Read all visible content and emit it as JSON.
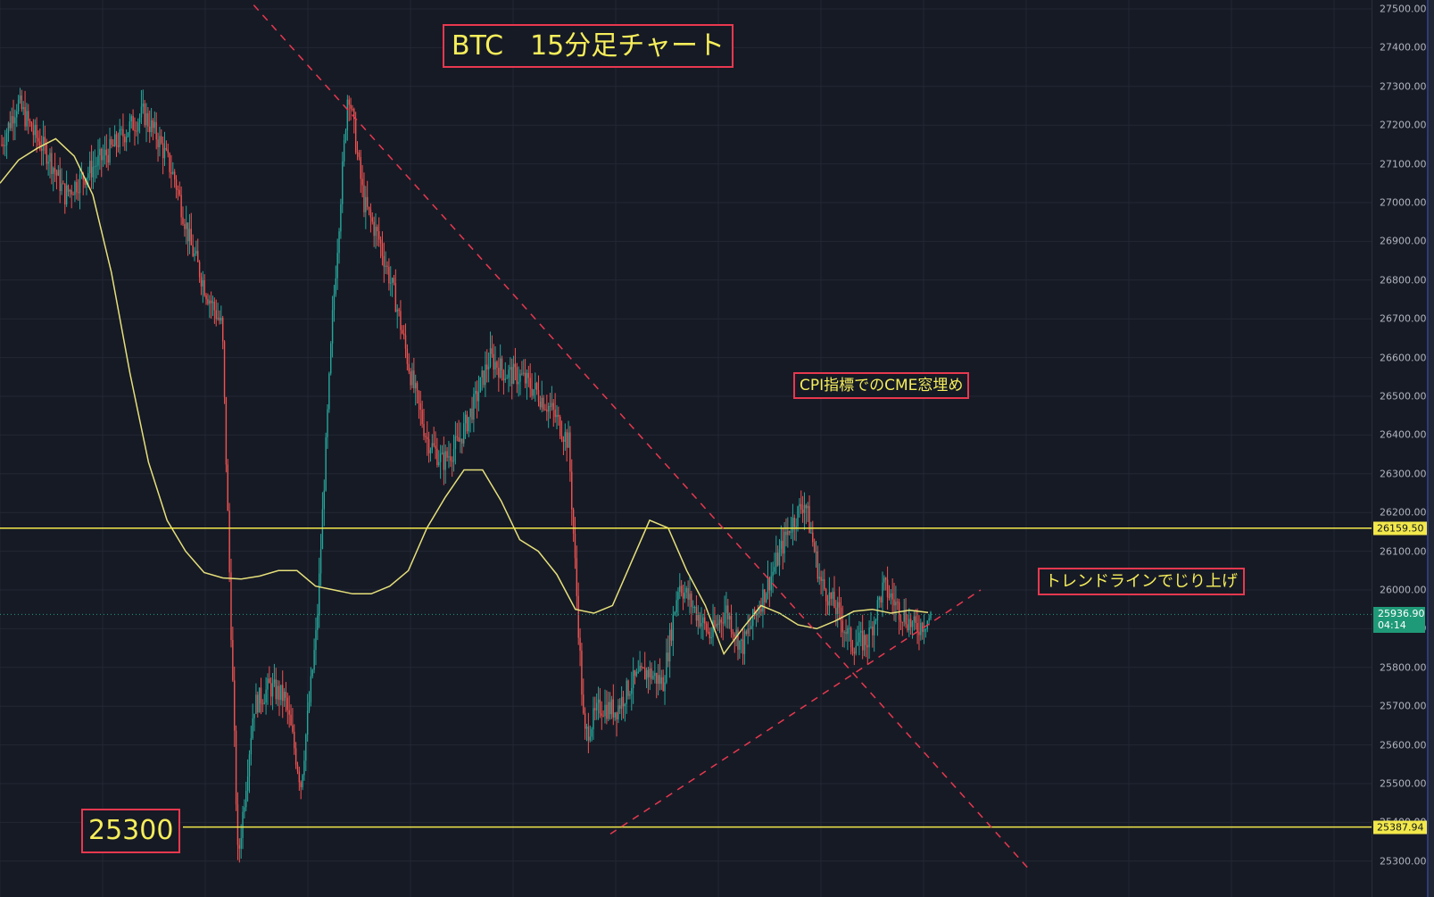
{
  "annotations": {
    "title": "BTC　15分足チャート",
    "cpi": "CPI指標でのCME窓埋め",
    "trend": "トレンドラインでじり上げ",
    "support": "25300"
  },
  "price_axis": {
    "ticks": [
      "27500.00",
      "27400.00",
      "27300.00",
      "27200.00",
      "27100.00",
      "27000.00",
      "26900.00",
      "26800.00",
      "26700.00",
      "26600.00",
      "26500.00",
      "26400.00",
      "26300.00",
      "26200.00",
      "26100.00",
      "26000.00",
      "25900.00",
      "25800.00",
      "25700.00",
      "25600.00",
      "25500.00",
      "25400.00",
      "25300.00"
    ],
    "resistance_label": "26159.50",
    "support_label": "25387.94",
    "current_price": "25936.90",
    "countdown": "04:14"
  },
  "colors": {
    "background": "#161a25",
    "grid": "#232735",
    "up_candle": "#26a69a",
    "down_candle": "#ef5350",
    "moving_average": "#e6e07a",
    "horizontal_level": "#f2e84a",
    "trendline": "#e8384f",
    "annotation_border": "#e8384f",
    "annotation_text": "#f6ee5a",
    "current_price": "#1f9a78"
  },
  "chart_data": {
    "type": "candlestick",
    "symbol": "BTC",
    "timeframe": "15分足",
    "ylim": [
      25245,
      27520
    ],
    "grid": true,
    "horizontal_levels": [
      26159.5,
      25387.94
    ],
    "current_price": 25936.9,
    "series": [
      {
        "values": [
          27150,
          27260,
          27180,
          27120,
          27020,
          27060,
          27100,
          27140,
          27190,
          27230,
          27160,
          27060,
          26890,
          26770,
          26680,
          25300,
          25700,
          25750,
          25720,
          25500,
          25900,
          26700,
          27300,
          27000,
          26900,
          26750,
          26550,
          26390,
          26330,
          26380,
          26480,
          26600,
          26560,
          26550,
          26510,
          26460,
          26380,
          25620,
          25700,
          25690,
          25760,
          25790,
          25760,
          26020,
          25950,
          25880,
          25950,
          25850,
          25950,
          26050,
          26160,
          26230,
          26020,
          25950,
          25860,
          25870,
          26010,
          25950,
          25900,
          25930
        ]
      },
      {
        "values": [
          27050,
          27110,
          27140,
          27165,
          27120,
          27020,
          26820,
          26560,
          26330,
          26180,
          26100,
          26045,
          26031,
          26028,
          26036,
          26050,
          26050,
          26010,
          26000,
          25990,
          25990,
          26010,
          26050,
          26160,
          26240,
          26310,
          26310,
          26230,
          26130,
          26100,
          26040,
          25950,
          25940,
          25960,
          26070,
          26180,
          26160,
          26050,
          25960,
          25835,
          25900,
          25960,
          25940,
          25910,
          25900,
          25920,
          25945,
          25950,
          25940,
          25948,
          25942
        ]
      }
    ],
    "trendlines": [
      {
        "from": [
          0.185,
          27510
        ],
        "to": [
          0.75,
          25280
        ]
      },
      {
        "from": [
          0.445,
          25370
        ],
        "to": [
          0.715,
          26000
        ]
      }
    ]
  }
}
